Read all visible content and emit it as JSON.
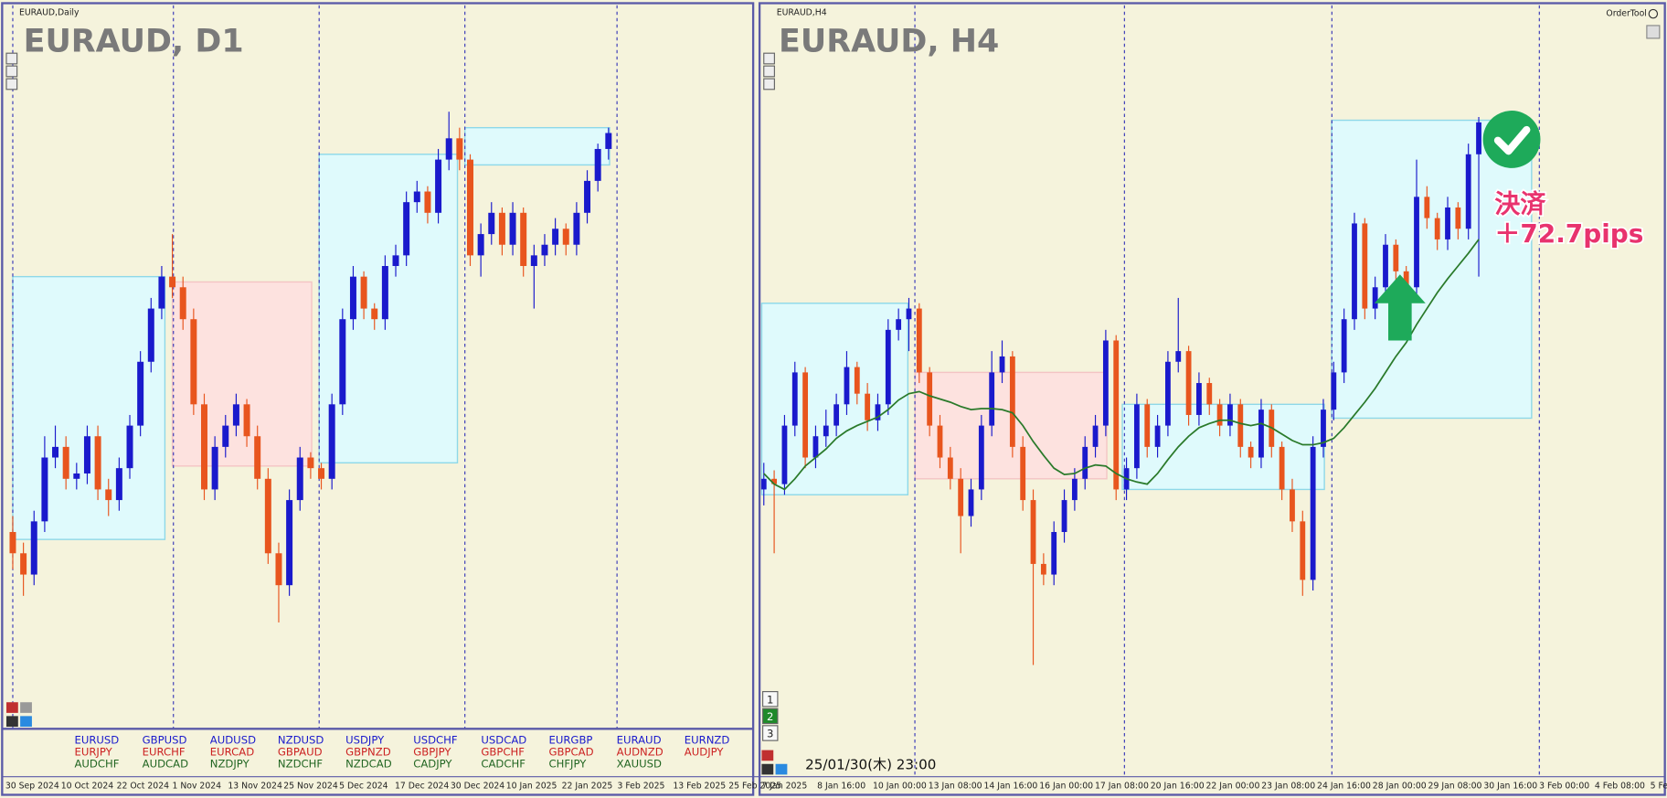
{
  "chart_data": [
    {
      "type": "candlestick",
      "label": "EURAUD,Daily",
      "title": "EURAUD, D1",
      "ylim": [
        15,
        685
      ],
      "up_color": "#1a1acc",
      "down_color": "#e8551e",
      "candles": [
        [
          200,
          215,
          165,
          180
        ],
        [
          180,
          190,
          140,
          160
        ],
        [
          160,
          220,
          150,
          210
        ],
        [
          210,
          290,
          200,
          270
        ],
        [
          270,
          300,
          260,
          280
        ],
        [
          280,
          290,
          240,
          250
        ],
        [
          250,
          265,
          240,
          255
        ],
        [
          255,
          300,
          245,
          290
        ],
        [
          290,
          300,
          230,
          240
        ],
        [
          240,
          250,
          215,
          230
        ],
        [
          230,
          270,
          220,
          260
        ],
        [
          260,
          310,
          250,
          300
        ],
        [
          300,
          370,
          290,
          360
        ],
        [
          360,
          420,
          350,
          410
        ],
        [
          410,
          450,
          400,
          440
        ],
        [
          440,
          480,
          420,
          430
        ],
        [
          430,
          440,
          390,
          400
        ],
        [
          400,
          410,
          310,
          320
        ],
        [
          320,
          330,
          230,
          240
        ],
        [
          240,
          290,
          230,
          280
        ],
        [
          280,
          310,
          270,
          300
        ],
        [
          300,
          330,
          290,
          320
        ],
        [
          320,
          325,
          280,
          290
        ],
        [
          290,
          300,
          240,
          250
        ],
        [
          250,
          260,
          170,
          180
        ],
        [
          180,
          190,
          115,
          150
        ],
        [
          150,
          240,
          140,
          230
        ],
        [
          230,
          280,
          220,
          270
        ],
        [
          270,
          275,
          250,
          260
        ],
        [
          260,
          265,
          240,
          250
        ],
        [
          250,
          330,
          240,
          320
        ],
        [
          320,
          410,
          310,
          400
        ],
        [
          400,
          450,
          390,
          440
        ],
        [
          440,
          445,
          400,
          410
        ],
        [
          410,
          415,
          390,
          400
        ],
        [
          400,
          460,
          390,
          450
        ],
        [
          450,
          470,
          440,
          460
        ],
        [
          460,
          520,
          450,
          510
        ],
        [
          510,
          530,
          500,
          520
        ],
        [
          520,
          525,
          490,
          500
        ],
        [
          500,
          560,
          490,
          550
        ],
        [
          550,
          595,
          540,
          570
        ],
        [
          570,
          580,
          540,
          550
        ],
        [
          550,
          555,
          450,
          460
        ],
        [
          460,
          490,
          440,
          480
        ],
        [
          480,
          510,
          470,
          500
        ],
        [
          500,
          505,
          460,
          470
        ],
        [
          470,
          510,
          460,
          500
        ],
        [
          500,
          505,
          440,
          450
        ],
        [
          450,
          470,
          410,
          460
        ],
        [
          460,
          480,
          450,
          470
        ],
        [
          470,
          495,
          460,
          485
        ],
        [
          485,
          490,
          460,
          470
        ],
        [
          470,
          510,
          460,
          500
        ],
        [
          500,
          540,
          490,
          530
        ],
        [
          530,
          565,
          520,
          560
        ],
        [
          560,
          580,
          550,
          575
        ]
      ],
      "zones": [
        {
          "start": 0,
          "end": 14.3,
          "top": 440,
          "bottom": 193,
          "color": "#dffafc"
        },
        {
          "start": 15,
          "end": 28.1,
          "top": 435,
          "bottom": 262,
          "color": "#fde2df"
        },
        {
          "start": 28.8,
          "end": 41.8,
          "top": 555,
          "bottom": 265,
          "color": "#dffafc"
        },
        {
          "start": 42.5,
          "end": 56.1,
          "top": 580,
          "bottom": 545,
          "color": "#dffafc"
        }
      ],
      "xlabels": [
        "30 Sep 2024",
        "10 Oct 2024",
        "22 Oct 2024",
        "1 Nov 2024",
        "13 Nov 2024",
        "25 Nov 2024",
        "5 Dec 2024",
        "17 Dec 2024",
        "30 Dec 2024",
        "10 Jan 2025",
        "22 Jan 2025",
        "3 Feb 2025",
        "13 Feb 2025",
        "25 Feb 2025"
      ]
    },
    {
      "type": "candlestick",
      "label": "EURAUD,H4",
      "title": "EURAUD, H4",
      "ylim": [
        15,
        685
      ],
      "up_color": "#1a1acc",
      "down_color": "#e8551e",
      "ma_color": "#2a7a2a",
      "candles": [
        [
          240,
          265,
          225,
          250
        ],
        [
          250,
          258,
          180,
          245
        ],
        [
          245,
          310,
          235,
          300
        ],
        [
          300,
          360,
          290,
          350
        ],
        [
          350,
          355,
          260,
          270
        ],
        [
          270,
          300,
          260,
          290
        ],
        [
          290,
          315,
          280,
          300
        ],
        [
          300,
          330,
          290,
          320
        ],
        [
          320,
          370,
          310,
          355
        ],
        [
          355,
          360,
          320,
          330
        ],
        [
          330,
          340,
          295,
          305
        ],
        [
          305,
          330,
          295,
          320
        ],
        [
          320,
          400,
          310,
          390
        ],
        [
          390,
          410,
          380,
          400
        ],
        [
          400,
          420,
          370,
          410
        ],
        [
          410,
          415,
          340,
          350
        ],
        [
          350,
          355,
          290,
          300
        ],
        [
          300,
          310,
          260,
          270
        ],
        [
          270,
          280,
          240,
          250
        ],
        [
          250,
          260,
          180,
          215
        ],
        [
          215,
          250,
          205,
          240
        ],
        [
          240,
          310,
          230,
          300
        ],
        [
          300,
          370,
          290,
          350
        ],
        [
          350,
          380,
          340,
          365
        ],
        [
          365,
          370,
          270,
          280
        ],
        [
          280,
          290,
          220,
          230
        ],
        [
          230,
          240,
          75,
          170
        ],
        [
          170,
          180,
          150,
          160
        ],
        [
          160,
          210,
          150,
          200
        ],
        [
          200,
          240,
          190,
          230
        ],
        [
          230,
          260,
          220,
          250
        ],
        [
          250,
          290,
          240,
          280
        ],
        [
          280,
          310,
          270,
          300
        ],
        [
          300,
          390,
          290,
          380
        ],
        [
          380,
          385,
          230,
          240
        ],
        [
          240,
          270,
          230,
          260
        ],
        [
          260,
          330,
          250,
          320
        ],
        [
          320,
          325,
          270,
          280
        ],
        [
          280,
          310,
          270,
          300
        ],
        [
          300,
          370,
          290,
          360
        ],
        [
          360,
          420,
          350,
          370
        ],
        [
          370,
          375,
          300,
          310
        ],
        [
          310,
          350,
          300,
          340
        ],
        [
          340,
          345,
          310,
          320
        ],
        [
          320,
          325,
          290,
          300
        ],
        [
          300,
          330,
          290,
          320
        ],
        [
          320,
          325,
          270,
          280
        ],
        [
          280,
          285,
          260,
          270
        ],
        [
          270,
          325,
          260,
          315
        ],
        [
          315,
          320,
          270,
          280
        ],
        [
          280,
          285,
          230,
          240
        ],
        [
          240,
          250,
          200,
          210
        ],
        [
          210,
          220,
          140,
          155
        ],
        [
          155,
          290,
          145,
          280
        ],
        [
          280,
          325,
          270,
          315
        ],
        [
          315,
          360,
          305,
          350
        ],
        [
          350,
          410,
          340,
          400
        ],
        [
          400,
          500,
          390,
          490
        ],
        [
          490,
          495,
          400,
          410
        ],
        [
          410,
          440,
          400,
          430
        ],
        [
          430,
          480,
          420,
          470
        ],
        [
          470,
          475,
          435,
          445
        ],
        [
          445,
          450,
          420,
          430
        ],
        [
          430,
          550,
          420,
          515
        ],
        [
          515,
          525,
          485,
          495
        ],
        [
          495,
          500,
          465,
          475
        ],
        [
          475,
          515,
          465,
          505
        ],
        [
          505,
          510,
          475,
          485
        ],
        [
          485,
          565,
          475,
          555
        ],
        [
          555,
          590,
          440,
          585
        ]
      ],
      "ma": [
        255,
        245,
        240,
        250,
        262,
        270,
        278,
        288,
        295,
        300,
        304,
        308,
        315,
        324,
        330,
        332,
        328,
        325,
        322,
        318,
        315,
        316,
        316,
        315,
        312,
        300,
        285,
        272,
        260,
        254,
        255,
        260,
        263,
        262,
        255,
        250,
        247,
        245,
        255,
        268,
        280,
        290,
        298,
        302,
        305,
        305,
        302,
        300,
        302,
        298,
        292,
        286,
        282,
        282,
        284,
        288,
        298,
        310,
        322,
        335,
        350,
        365,
        378,
        395,
        410,
        425,
        438,
        450,
        462,
        475
      ],
      "zones": [
        {
          "start": -0.2,
          "end": 13.9,
          "top": 415,
          "bottom": 235,
          "color": "#dffafc"
        },
        {
          "start": 14.6,
          "end": 33.1,
          "top": 350,
          "bottom": 250,
          "color": "#fde2df"
        },
        {
          "start": 34.6,
          "end": 54.1,
          "top": 320,
          "bottom": 240,
          "color": "#dffafc"
        },
        {
          "start": 54.8,
          "end": 74.1,
          "top": 587,
          "bottom": 307,
          "color": "#dffafc"
        }
      ],
      "xlabels": [
        "7 Jan 2025",
        "8 Jan 16:00",
        "10 Jan 00:00",
        "13 Jan 08:00",
        "14 Jan 16:00",
        "16 Jan 00:00",
        "17 Jan 08:00",
        "20 Jan 16:00",
        "22 Jan 00:00",
        "23 Jan 08:00",
        "24 Jan 16:00",
        "28 Jan 00:00",
        "29 Jan 08:00",
        "30 Jan 16:00",
        "3 Feb 00:00",
        "4 Feb 08:00",
        "5 Fe"
      ],
      "annotation": [
        "決済",
        "＋72.7pips"
      ]
    }
  ],
  "symbols": [
    [
      "EURUSD",
      "EURJPY",
      "AUDCHF"
    ],
    [
      "GBPUSD",
      "EURCHF",
      "AUDCAD"
    ],
    [
      "AUDUSD",
      "EURCAD",
      "NZDJPY"
    ],
    [
      "NZDUSD",
      "GBPAUD",
      "NZDCHF"
    ],
    [
      "USDJPY",
      "GBPNZD",
      "NZDCAD"
    ],
    [
      "USDCHF",
      "GBPJPY",
      "CADJPY"
    ],
    [
      "USDCAD",
      "GBPCHF",
      "CADCHF"
    ],
    [
      "EURGBP",
      "GBPCAD",
      "CHFJPY"
    ],
    [
      "EURAUD",
      "AUDNZD",
      "XAUUSD"
    ],
    [
      "EURNZD",
      "AUDJPY"
    ]
  ],
  "symbol_colors": [
    "#1a1acc",
    "#cc2222",
    "#226622"
  ],
  "order_tool": "OrderTool",
  "buttons": [
    "1",
    "2",
    "3"
  ],
  "timestamp": "25/01/30(木) 23:00"
}
